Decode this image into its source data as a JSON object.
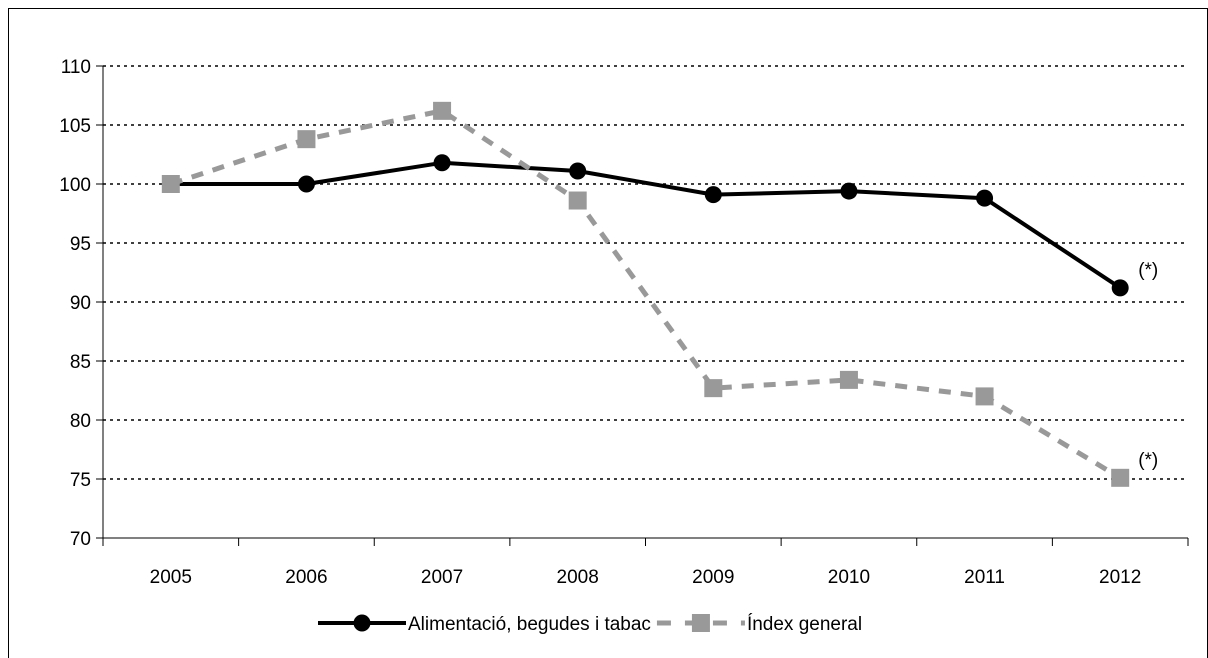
{
  "chart_data": {
    "type": "line",
    "title": "",
    "xlabel": "",
    "ylabel": "",
    "categories": [
      "2005",
      "2006",
      "2007",
      "2008",
      "2009",
      "2010",
      "2011",
      "2012"
    ],
    "ylim": [
      70,
      110
    ],
    "yticks": [
      70,
      75,
      80,
      85,
      90,
      95,
      100,
      105,
      110
    ],
    "grid": "horizontal-dotted",
    "legend_position": "bottom",
    "series": [
      {
        "name": "Alimentació, begudes i tabac",
        "values": [
          100,
          100,
          101.8,
          101.1,
          99.1,
          99.4,
          98.8,
          91.2
        ],
        "color": "#000000",
        "marker": "circle",
        "line_style": "solid"
      },
      {
        "name": "Índex general",
        "values": [
          100,
          103.8,
          106.2,
          98.6,
          82.7,
          83.4,
          82.0,
          75.1
        ],
        "color": "#999999",
        "marker": "square",
        "line_style": "dashed"
      }
    ],
    "annotations": [
      {
        "text": "(*)",
        "series": 0,
        "category": "2012"
      },
      {
        "text": "(*)",
        "series": 1,
        "category": "2012"
      }
    ]
  }
}
